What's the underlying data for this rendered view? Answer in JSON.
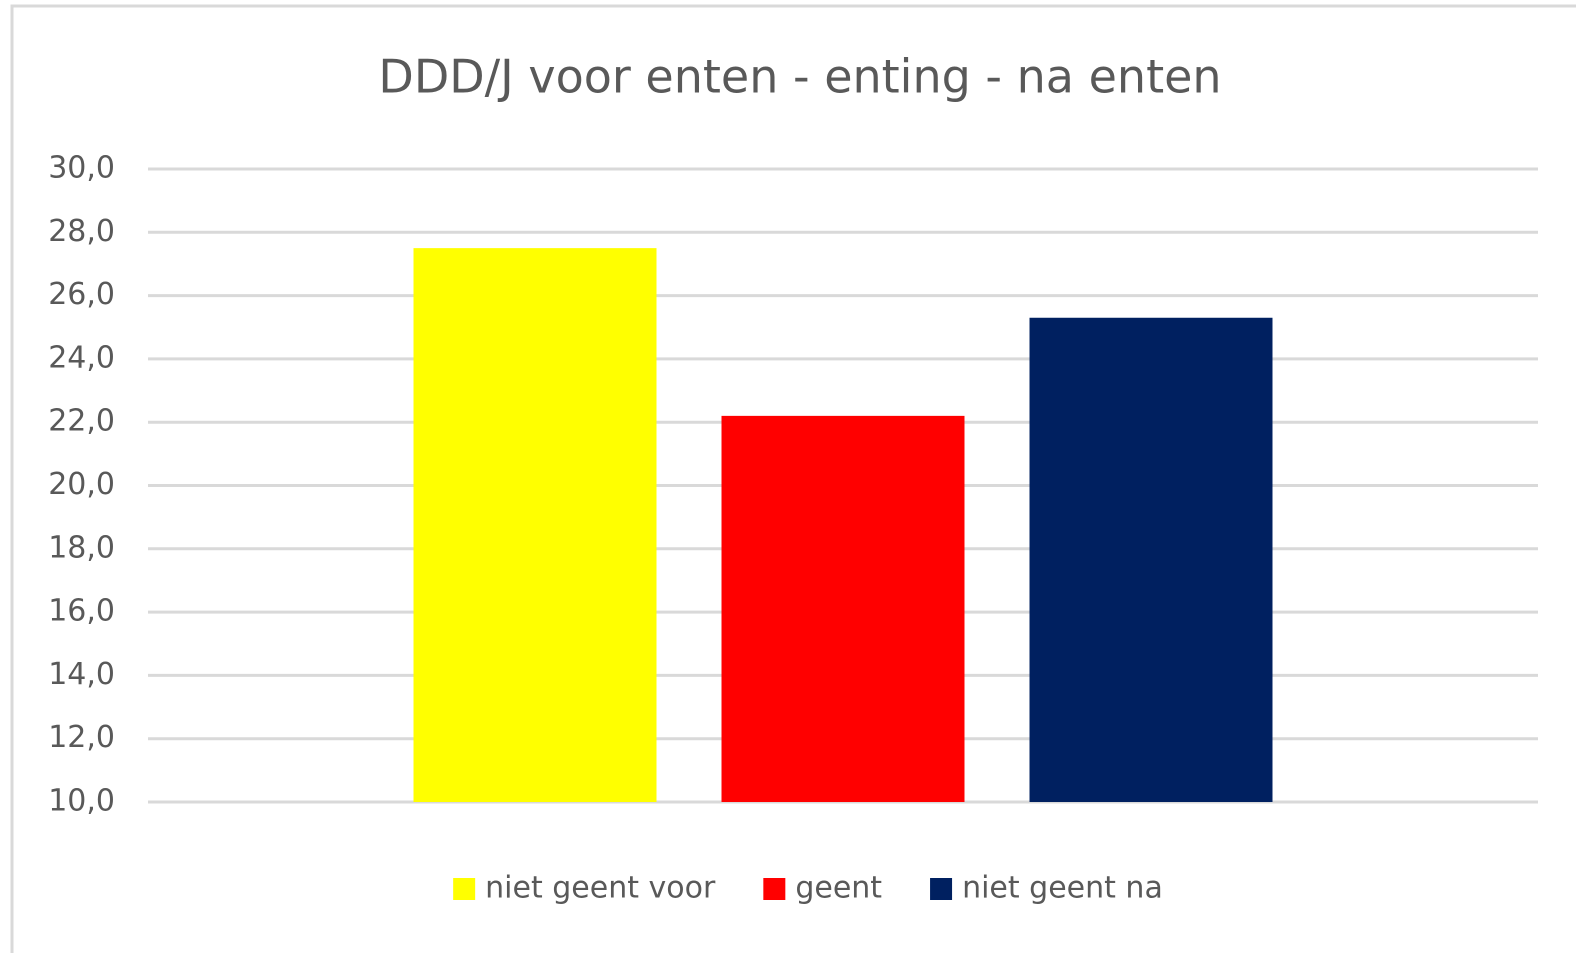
{
  "chart_data": {
    "type": "bar",
    "title": "DDD/J voor enten - enting - na enten",
    "categories": [
      null
    ],
    "series": [
      {
        "name": "niet geent voor",
        "color": "#ffff00",
        "values": [
          27.5
        ]
      },
      {
        "name": "geent",
        "color": "#ff0000",
        "values": [
          22.2
        ]
      },
      {
        "name": "niet geent na",
        "color": "#002060",
        "values": [
          25.3
        ]
      }
    ],
    "ylim": [
      10,
      30
    ],
    "yticks": [
      {
        "value": 10,
        "label": "10,0"
      },
      {
        "value": 12,
        "label": "12,0"
      },
      {
        "value": 14,
        "label": "14,0"
      },
      {
        "value": 16,
        "label": "16,0"
      },
      {
        "value": 18,
        "label": "18,0"
      },
      {
        "value": 20,
        "label": "20,0"
      },
      {
        "value": 22,
        "label": "22,0"
      },
      {
        "value": 24,
        "label": "24,0"
      },
      {
        "value": 26,
        "label": "26,0"
      },
      {
        "value": 28,
        "label": "28,0"
      },
      {
        "value": 30,
        "label": "30,0"
      }
    ],
    "grid": true,
    "legend": "bottom"
  }
}
